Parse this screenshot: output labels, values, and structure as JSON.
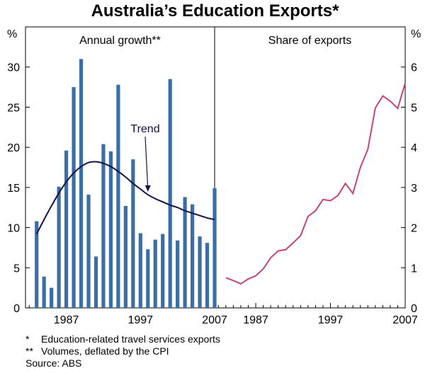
{
  "title": "Australia’s Education Exports*",
  "colors": {
    "bar": "#3a6ea5",
    "trend": "#14124a",
    "share": "#c3457d",
    "axis": "#000000"
  },
  "chart_data": [
    {
      "type": "bar",
      "panel_title": "Annual growth**",
      "y_unit": "%",
      "ylim": [
        0,
        35
      ],
      "yticks": [
        0,
        5,
        10,
        15,
        20,
        25,
        30
      ],
      "xlim": [
        1982,
        2007
      ],
      "xticks": [
        1987,
        1997,
        2007
      ],
      "legend": "none",
      "series": [
        {
          "kind": "bar",
          "x": [
            1983,
            1984,
            1985,
            1986,
            1987,
            1988,
            1989,
            1990,
            1991,
            1992,
            1993,
            1994,
            1995,
            1996,
            1997,
            1998,
            1999,
            2000,
            2001,
            2002,
            2003,
            2004,
            2005,
            2006,
            2007
          ],
          "values": [
            10.8,
            3.9,
            2.5,
            15.1,
            19.6,
            27.5,
            31.0,
            14.1,
            6.4,
            20.4,
            19.5,
            27.8,
            12.7,
            18.5,
            9.3,
            7.3,
            8.5,
            9.2,
            28.5,
            8.4,
            13.8,
            12.9,
            8.9,
            8.1,
            14.9
          ]
        },
        {
          "kind": "line",
          "name": "Trend",
          "x": [
            1983,
            1984,
            1985,
            1986,
            1987,
            1988,
            1989,
            1990,
            1991,
            1992,
            1993,
            1994,
            1995,
            1996,
            1997,
            1998,
            1999,
            2000,
            2001,
            2002,
            2003,
            2004,
            2005,
            2006,
            2007
          ],
          "values": [
            9.2,
            11.0,
            12.7,
            14.3,
            15.7,
            16.8,
            17.6,
            18.1,
            18.2,
            18.0,
            17.6,
            17.0,
            16.3,
            15.5,
            14.8,
            14.1,
            13.6,
            13.2,
            12.8,
            12.5,
            12.1,
            11.8,
            11.5,
            11.2,
            11.0
          ]
        }
      ],
      "annotations": [
        {
          "text": "Trend"
        }
      ]
    },
    {
      "type": "line",
      "panel_title": "Share of exports",
      "y_unit": "%",
      "ylim": [
        0,
        7
      ],
      "yticks": [
        0,
        1,
        2,
        3,
        4,
        5,
        6
      ],
      "xlim": [
        1982,
        2007
      ],
      "xticks": [
        1987,
        1997,
        2007
      ],
      "legend": "none",
      "series": [
        {
          "kind": "line",
          "x": [
            1983,
            1984,
            1985,
            1986,
            1987,
            1988,
            1989,
            1990,
            1991,
            1992,
            1993,
            1994,
            1995,
            1996,
            1997,
            1998,
            1999,
            2000,
            2001,
            2002,
            2003,
            2004,
            2005,
            2006,
            2007
          ],
          "values": [
            0.75,
            0.68,
            0.6,
            0.72,
            0.8,
            0.97,
            1.25,
            1.42,
            1.45,
            1.62,
            1.8,
            2.28,
            2.42,
            2.7,
            2.67,
            2.8,
            3.1,
            2.85,
            3.5,
            3.95,
            4.98,
            5.28,
            5.15,
            4.97,
            5.6
          ]
        }
      ]
    }
  ],
  "footnotes": [
    {
      "mark": "*",
      "text": "Education-related travel services exports"
    },
    {
      "mark": "**",
      "text": "Volumes, deflated by the CPI"
    },
    {
      "mark": "",
      "text": "Source: ABS"
    }
  ]
}
